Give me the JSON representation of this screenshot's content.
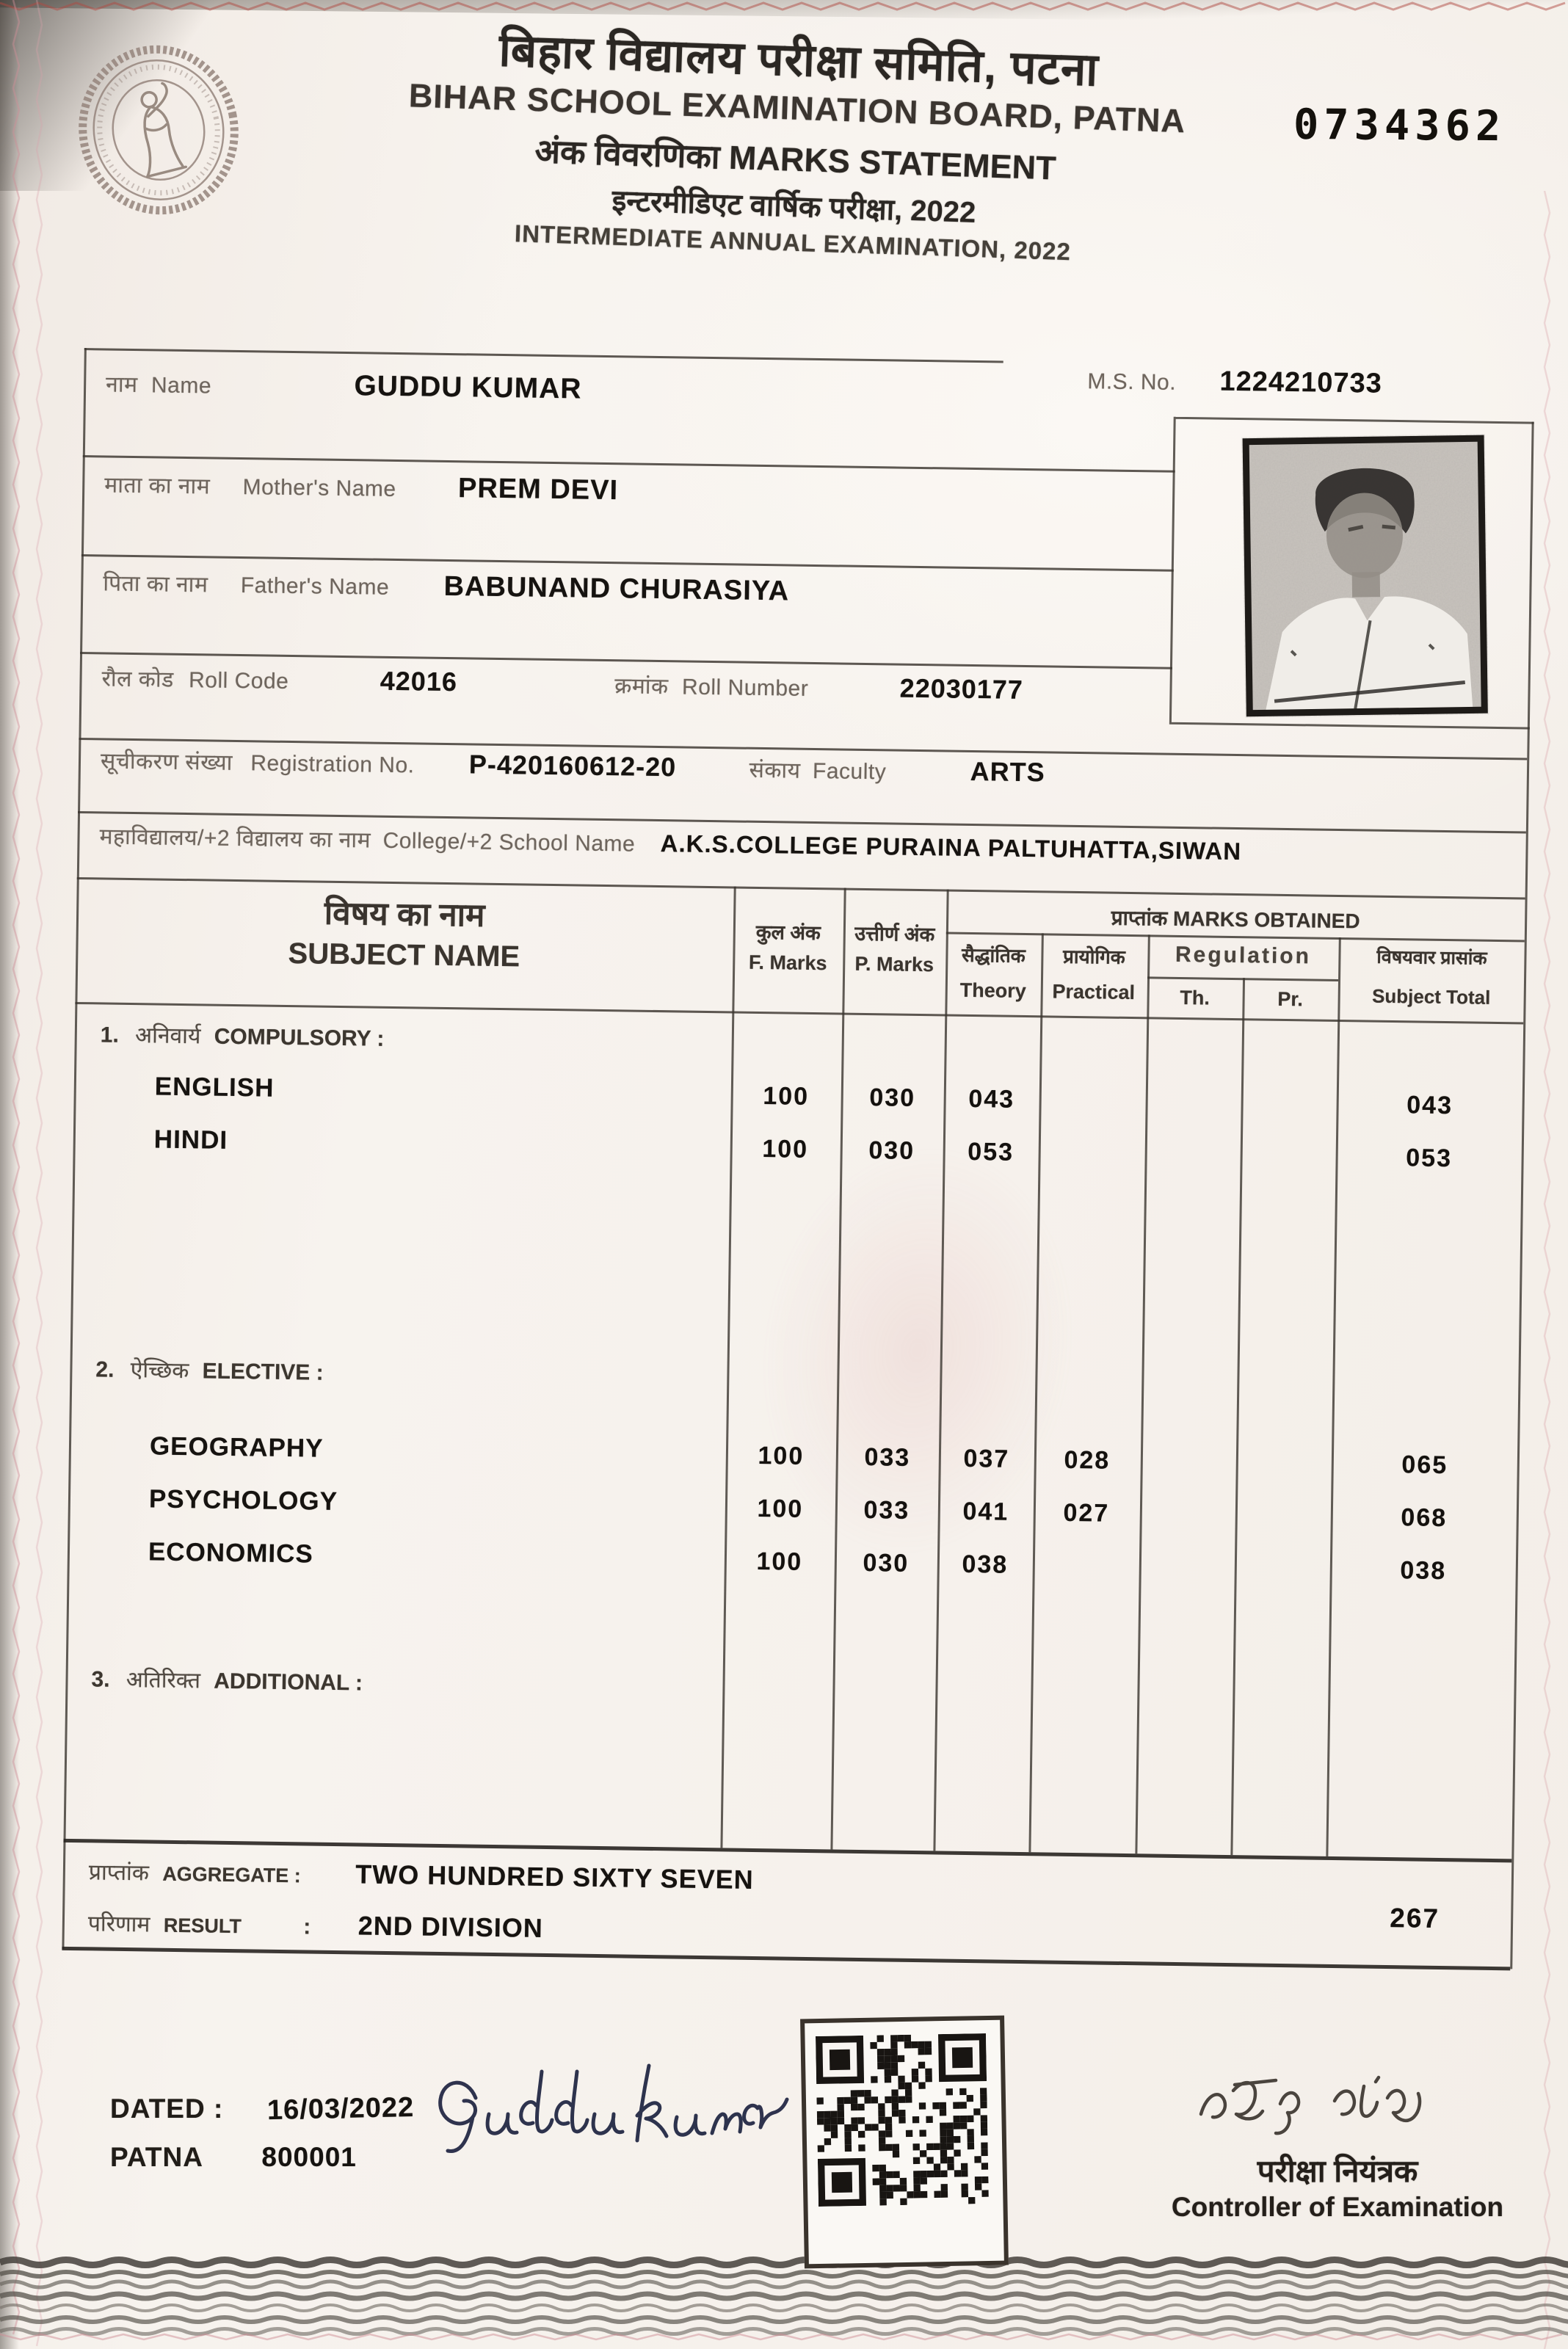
{
  "colors": {
    "paper": "#f6f1ec",
    "ink": "#161310",
    "label_ink": "#6e655d",
    "border_pink": "#cf8d96",
    "top_zigzag_red": "#b04a42",
    "signature_ink": "#1d2340"
  },
  "serial_number": "0734362",
  "header": {
    "title_hi": "बिहार विद्यालय परीक्षा समिति, पटना",
    "title_en": "BIHAR SCHOOL EXAMINATION BOARD, PATNA",
    "subtitle": "अंक विवरणिका MARKS STATEMENT",
    "exam_hi": "इन्टरमीडिएट वार्षिक परीक्षा, 2022",
    "exam_en": "INTERMEDIATE ANNUAL EXAMINATION, 2022"
  },
  "fields": {
    "name": {
      "label_hi": "नाम",
      "label_en": "Name",
      "value": "GUDDU KUMAR"
    },
    "ms_no": {
      "label": "M.S. No.",
      "value": "1224210733"
    },
    "mother": {
      "label_hi": "माता का नाम",
      "label_en": "Mother's Name",
      "value": "PREM DEVI"
    },
    "father": {
      "label_hi": "पिता का नाम",
      "label_en": "Father's Name",
      "value": "BABUNAND CHURASIYA"
    },
    "roll_code": {
      "label_hi": "रौल कोड",
      "label_en": "Roll Code",
      "value": "42016"
    },
    "roll_number": {
      "label_hi": "क्रमांक",
      "label_en": "Roll Number",
      "value": "22030177"
    },
    "registration": {
      "label_hi": "सूचीकरण संख्या",
      "label_en": "Registration No.",
      "value": "P-420160612-20"
    },
    "faculty": {
      "label_hi": "संकाय",
      "label_en": "Faculty",
      "value": "ARTS"
    },
    "college": {
      "label_hi": "महाविद्यालय/+2 विद्यालय का नाम",
      "label_en": "College/+2 School Name",
      "value": "A.K.S.COLLEGE PURAINA PALTUHATTA,SIWAN"
    }
  },
  "marks_table": {
    "col_headers": {
      "subject_hi": "विषय का नाम",
      "subject_en": "SUBJECT NAME",
      "f_marks_hi": "कुल अंक",
      "f_marks_en": "F. Marks",
      "p_marks_hi": "उत्तीर्ण अंक",
      "p_marks_en": "P. Marks",
      "obtained_hi": "प्राप्तांक",
      "obtained_en": "MARKS OBTAINED",
      "theory_hi": "सैद्धांतिक",
      "theory_en": "Theory",
      "practical_hi": "प्रायोगिक",
      "practical_en": "Practical",
      "regulation": "Regulation",
      "reg_th": "Th.",
      "reg_pr": "Pr.",
      "total_hi": "विषयवार प्रासांक",
      "total_en": "Subject Total"
    },
    "sections": [
      {
        "no": "1.",
        "label_hi": "अनिवार्य",
        "label_en": "COMPULSORY :",
        "rows": [
          {
            "subject": "ENGLISH",
            "f_marks": "100",
            "p_marks": "030",
            "theory": "043",
            "practical": "",
            "reg_th": "",
            "reg_pr": "",
            "total": "043"
          },
          {
            "subject": "HINDI",
            "f_marks": "100",
            "p_marks": "030",
            "theory": "053",
            "practical": "",
            "reg_th": "",
            "reg_pr": "",
            "total": "053"
          }
        ]
      },
      {
        "no": "2.",
        "label_hi": "ऐच्छिक",
        "label_en": "ELECTIVE :",
        "rows": [
          {
            "subject": "GEOGRAPHY",
            "f_marks": "100",
            "p_marks": "033",
            "theory": "037",
            "practical": "028",
            "reg_th": "",
            "reg_pr": "",
            "total": "065"
          },
          {
            "subject": "PSYCHOLOGY",
            "f_marks": "100",
            "p_marks": "033",
            "theory": "041",
            "practical": "027",
            "reg_th": "",
            "reg_pr": "",
            "total": "068"
          },
          {
            "subject": "ECONOMICS",
            "f_marks": "100",
            "p_marks": "030",
            "theory": "038",
            "practical": "",
            "reg_th": "",
            "reg_pr": "",
            "total": "038"
          }
        ]
      },
      {
        "no": "3.",
        "label_hi": "अतिरिक्त",
        "label_en": "ADDITIONAL :",
        "rows": []
      }
    ]
  },
  "summary": {
    "aggregate_label_hi": "प्राप्तांक",
    "aggregate_label_en": "AGGREGATE :",
    "aggregate_words": "TWO HUNDRED SIXTY SEVEN",
    "aggregate_value": "267",
    "result_label_hi": "परिणाम",
    "result_label_en": "RESULT",
    "result_colon": ":",
    "result_value": "2ND DIVISION"
  },
  "footer": {
    "dated_label": "DATED :",
    "date": "16/03/2022",
    "place": "PATNA",
    "pin": "800001",
    "signature_text": "Guddu Kumar",
    "controller_hi": "परीक्षा नियंत्रक",
    "controller_en": "Controller of Examination"
  }
}
